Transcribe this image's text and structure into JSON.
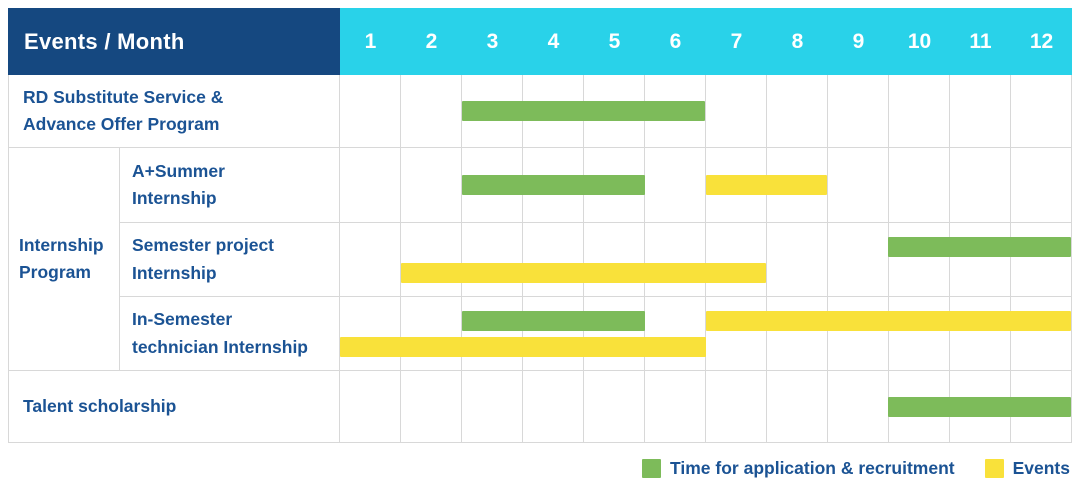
{
  "header": {
    "title": "Events / Month",
    "months": [
      "1",
      "2",
      "3",
      "4",
      "5",
      "6",
      "7",
      "8",
      "9",
      "10",
      "11",
      "12"
    ]
  },
  "colors": {
    "navy": "#154880",
    "cyan": "#29D2E9",
    "green": "#7DBB5A",
    "yellow": "#F9E13A",
    "grid": "#D8D8D8",
    "label_text": "#1B5394"
  },
  "rows": [
    {
      "type": "simple",
      "label": "RD Substitute Service &\nAdvance Offer Program",
      "lines": [
        {
          "bars": [
            {
              "color": "green",
              "start": 3,
              "end": 6
            }
          ]
        }
      ]
    },
    {
      "type": "group",
      "group_label": "Internship\nProgram",
      "subrows": [
        {
          "label": "A+Summer\nInternship",
          "lines": [
            {
              "bars": [
                {
                  "color": "green",
                  "start": 3,
                  "end": 5
                },
                {
                  "color": "yellow",
                  "start": 7,
                  "end": 8
                }
              ]
            }
          ]
        },
        {
          "label": "Semester project\nInternship",
          "lines": [
            {
              "bars": [
                {
                  "color": "green",
                  "start": 10,
                  "end": 12
                }
              ]
            },
            {
              "bars": [
                {
                  "color": "yellow",
                  "start": 2,
                  "end": 7
                }
              ]
            }
          ]
        },
        {
          "label": "In-Semester\ntechnician Internship",
          "lines": [
            {
              "bars": [
                {
                  "color": "green",
                  "start": 3,
                  "end": 5
                },
                {
                  "color": "yellow",
                  "start": 7,
                  "end": 12
                }
              ]
            },
            {
              "bars": [
                {
                  "color": "yellow",
                  "start": 1,
                  "end": 6
                }
              ]
            }
          ]
        }
      ]
    },
    {
      "type": "simple",
      "label": "Talent scholarship",
      "lines": [
        {
          "bars": [
            {
              "color": "green",
              "start": 10,
              "end": 12
            }
          ]
        }
      ]
    }
  ],
  "legend": [
    {
      "color": "green",
      "label": "Time for application & recruitment"
    },
    {
      "color": "yellow",
      "label": "Events"
    }
  ],
  "chart_data": {
    "type": "table",
    "subtype": "gantt-timeline",
    "title": "Events / Month",
    "x": {
      "label": "Month",
      "ticks": [
        1,
        2,
        3,
        4,
        5,
        6,
        7,
        8,
        9,
        10,
        11,
        12
      ],
      "range": [
        1,
        12
      ]
    },
    "grid": true,
    "legend_position": "bottom-right",
    "legend": [
      {
        "name": "Time for application & recruitment",
        "color": "#7DBB5A"
      },
      {
        "name": "Events",
        "color": "#F9E13A"
      }
    ],
    "events": [
      {
        "event": "RD Substitute Service & Advance Offer Program",
        "group": null,
        "spans": [
          {
            "category": "Time for application & recruitment",
            "months": [
              3,
              6
            ]
          }
        ]
      },
      {
        "event": "A+Summer Internship",
        "group": "Internship Program",
        "spans": [
          {
            "category": "Time for application & recruitment",
            "months": [
              3,
              5
            ]
          },
          {
            "category": "Events",
            "months": [
              7,
              8
            ]
          }
        ]
      },
      {
        "event": "Semester project Internship",
        "group": "Internship Program",
        "spans": [
          {
            "category": "Time for application & recruitment",
            "months": [
              10,
              12
            ]
          },
          {
            "category": "Events",
            "months": [
              2,
              7
            ]
          }
        ]
      },
      {
        "event": "In-Semester technician Internship",
        "group": "Internship Program",
        "spans": [
          {
            "category": "Time for application & recruitment",
            "months": [
              3,
              5
            ]
          },
          {
            "category": "Events",
            "months": [
              7,
              12
            ]
          },
          {
            "category": "Events",
            "months": [
              1,
              6
            ]
          }
        ]
      },
      {
        "event": "Talent scholarship",
        "group": null,
        "spans": [
          {
            "category": "Time for application & recruitment",
            "months": [
              10,
              12
            ]
          }
        ]
      }
    ]
  }
}
